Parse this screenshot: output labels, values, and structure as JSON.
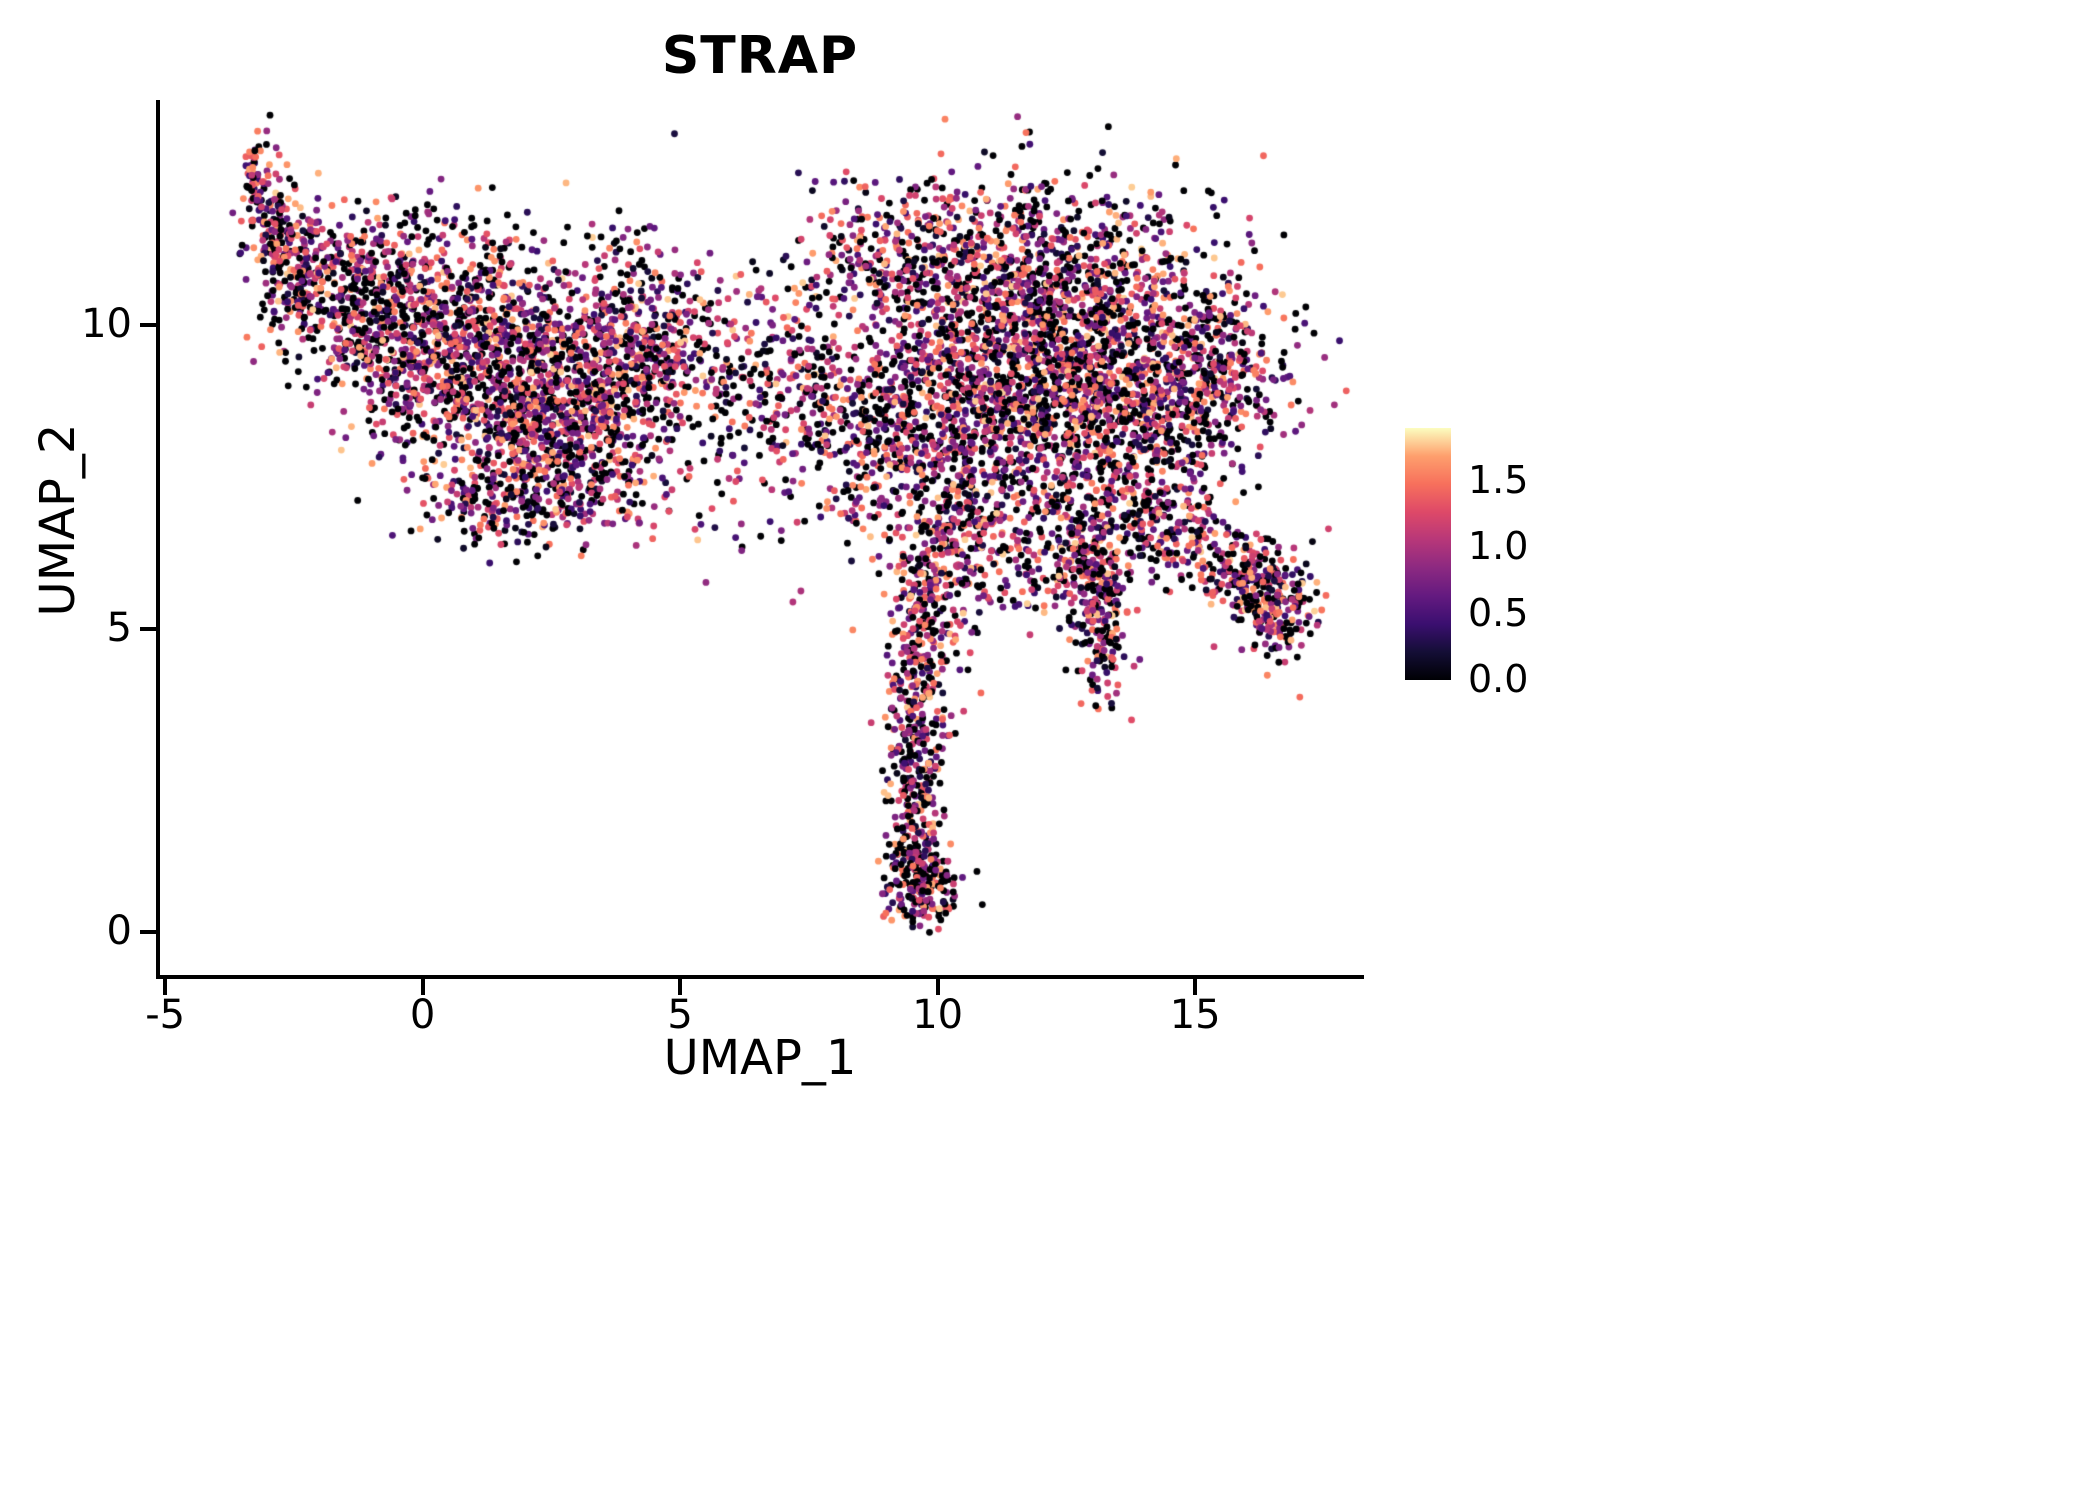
{
  "chart_data": {
    "type": "scatter",
    "title": "STRAP",
    "xlabel": "UMAP_1",
    "ylabel": "UMAP_2",
    "x_range": [
      -5.1,
      18.2
    ],
    "y_range": [
      -0.7,
      13.7
    ],
    "x_ticks": [
      {
        "value": -5,
        "label": "-5"
      },
      {
        "value": 0,
        "label": "0"
      },
      {
        "value": 5,
        "label": "5"
      },
      {
        "value": 10,
        "label": "10"
      },
      {
        "value": 15,
        "label": "15"
      }
    ],
    "y_ticks": [
      {
        "value": 0,
        "label": "0"
      },
      {
        "value": 5,
        "label": "5"
      },
      {
        "value": 10,
        "label": "10"
      }
    ],
    "grid": false,
    "legend_position": "right",
    "point_radius": 3.4,
    "seed": 7,
    "colormap_stops": [
      "#000004",
      "#140e36",
      "#3b0f70",
      "#641a80",
      "#8c2981",
      "#b73779",
      "#de4968",
      "#f7705c",
      "#fe9f6d",
      "#fcfdbf"
    ],
    "colorbar": {
      "vmin": 0,
      "vmax": 1.9,
      "ticks": [
        {
          "value": 1.5,
          "label": "1.5"
        },
        {
          "value": 1.0,
          "label": "1.0"
        },
        {
          "value": 0.5,
          "label": "0.5"
        },
        {
          "value": 0.0,
          "label": "0.0"
        }
      ]
    },
    "expression": {
      "zero_fraction": 0.3,
      "max": 1.8
    },
    "clusters": [
      {
        "cx": -3.2,
        "cy": 12.4,
        "sx": 0.15,
        "sy": 0.35,
        "n": 60
      },
      {
        "cx": -2.9,
        "cy": 11.7,
        "sx": 0.25,
        "sy": 0.4,
        "n": 90
      },
      {
        "cx": -2.4,
        "cy": 11.0,
        "sx": 0.35,
        "sy": 0.45,
        "n": 130
      },
      {
        "cx": -1.5,
        "cy": 10.5,
        "sx": 0.7,
        "sy": 0.6,
        "n": 260
      },
      {
        "cx": 0.2,
        "cy": 9.9,
        "sx": 1.1,
        "sy": 0.8,
        "n": 650
      },
      {
        "cx": 1.8,
        "cy": 9.0,
        "sx": 1.3,
        "sy": 1.0,
        "n": 900
      },
      {
        "cx": 3.4,
        "cy": 8.7,
        "sx": 1.0,
        "sy": 0.9,
        "n": 480
      },
      {
        "cx": 4.6,
        "cy": 9.8,
        "sx": 0.8,
        "sy": 0.6,
        "n": 220
      },
      {
        "cx": 2.3,
        "cy": 7.4,
        "sx": 0.9,
        "sy": 0.5,
        "n": 220
      },
      {
        "cx": 1.2,
        "cy": 6.9,
        "sx": 0.7,
        "sy": 0.3,
        "n": 60
      },
      {
        "cx": -0.3,
        "cy": 11.4,
        "sx": 1.1,
        "sy": 0.4,
        "n": 90
      },
      {
        "cx": 4.0,
        "cy": 11.2,
        "sx": 0.5,
        "sy": 0.3,
        "n": 30
      },
      {
        "cx": 6.3,
        "cy": 8.6,
        "sx": 0.9,
        "sy": 1.0,
        "n": 140
      },
      {
        "cx": 7.3,
        "cy": 9.2,
        "sx": 0.7,
        "sy": 0.9,
        "n": 160
      },
      {
        "cx": 7.0,
        "cy": 9.5,
        "sx": 2.5,
        "sy": 1.3,
        "n": 110
      },
      {
        "cx": 12.3,
        "cy": 9.6,
        "sx": 1.8,
        "sy": 1.2,
        "n": 1750
      },
      {
        "cx": 10.6,
        "cy": 8.4,
        "sx": 1.0,
        "sy": 1.0,
        "n": 480
      },
      {
        "cx": 13.8,
        "cy": 8.4,
        "sx": 1.1,
        "sy": 0.9,
        "n": 480
      },
      {
        "cx": 11.5,
        "cy": 11.3,
        "sx": 1.3,
        "sy": 0.6,
        "n": 300
      },
      {
        "cx": 9.2,
        "cy": 10.9,
        "sx": 0.8,
        "sy": 0.5,
        "n": 130
      },
      {
        "cx": 8.7,
        "cy": 8.1,
        "sx": 0.6,
        "sy": 0.9,
        "n": 200
      },
      {
        "cx": 15.3,
        "cy": 9.3,
        "sx": 0.7,
        "sy": 0.8,
        "n": 260
      },
      {
        "cx": 9.0,
        "cy": 11.8,
        "sx": 1.2,
        "sy": 0.4,
        "n": 60
      },
      {
        "cx": 12.9,
        "cy": 6.6,
        "sx": 0.7,
        "sy": 0.5,
        "n": 180
      },
      {
        "cx": 11.8,
        "cy": 6.0,
        "sx": 0.8,
        "sy": 0.45,
        "n": 110
      },
      {
        "cx": 14.6,
        "cy": 6.6,
        "sx": 0.5,
        "sy": 0.35,
        "n": 120
      },
      {
        "cx": 15.8,
        "cy": 5.9,
        "sx": 0.5,
        "sy": 0.35,
        "n": 140
      },
      {
        "cx": 16.6,
        "cy": 5.4,
        "sx": 0.35,
        "sy": 0.45,
        "n": 190
      },
      {
        "cx": 13.2,
        "cy": 4.9,
        "sx": 0.25,
        "sy": 0.55,
        "n": 130
      },
      {
        "cx": 13.05,
        "cy": 5.7,
        "sx": 0.3,
        "sy": 0.4,
        "n": 80
      },
      {
        "cx": 10.5,
        "cy": 6.8,
        "sx": 0.5,
        "sy": 0.4,
        "n": 110
      },
      {
        "cx": 9.9,
        "cy": 5.8,
        "sx": 0.45,
        "sy": 0.5,
        "n": 150
      },
      {
        "cx": 9.7,
        "cy": 4.7,
        "sx": 0.35,
        "sy": 0.5,
        "n": 130
      },
      {
        "cx": 9.6,
        "cy": 3.5,
        "sx": 0.3,
        "sy": 0.5,
        "n": 120
      },
      {
        "cx": 9.55,
        "cy": 2.4,
        "sx": 0.25,
        "sy": 0.5,
        "n": 110
      },
      {
        "cx": 9.6,
        "cy": 1.3,
        "sx": 0.25,
        "sy": 0.4,
        "n": 100
      },
      {
        "cx": 9.8,
        "cy": 0.7,
        "sx": 0.35,
        "sy": 0.28,
        "n": 160
      }
    ]
  }
}
